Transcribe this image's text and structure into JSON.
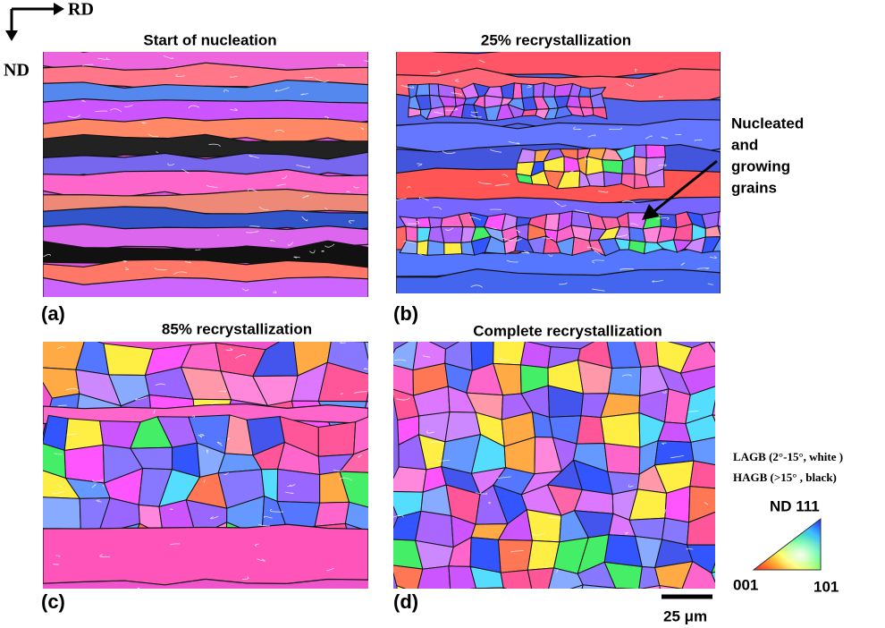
{
  "orientation": {
    "rd": "RD",
    "nd": "ND"
  },
  "panels": [
    {
      "label": "(a)",
      "title": "Start of nucleation"
    },
    {
      "label": "(b)",
      "title": "25% recrystallization"
    },
    {
      "label": "(c)",
      "title": "85% recrystallization"
    },
    {
      "label": "(d)",
      "title": "Complete recrystallization"
    }
  ],
  "annotation": {
    "lines": [
      "Nucleated",
      "and",
      "growing",
      "grains"
    ]
  },
  "legend": {
    "lagb": "LAGB (2°-15°, white )",
    "hagb": "HAGB (>15° , black)",
    "ipf": {
      "top": "ND 111",
      "left": "001",
      "right": "101"
    }
  },
  "scale_bar": "25 μm"
}
